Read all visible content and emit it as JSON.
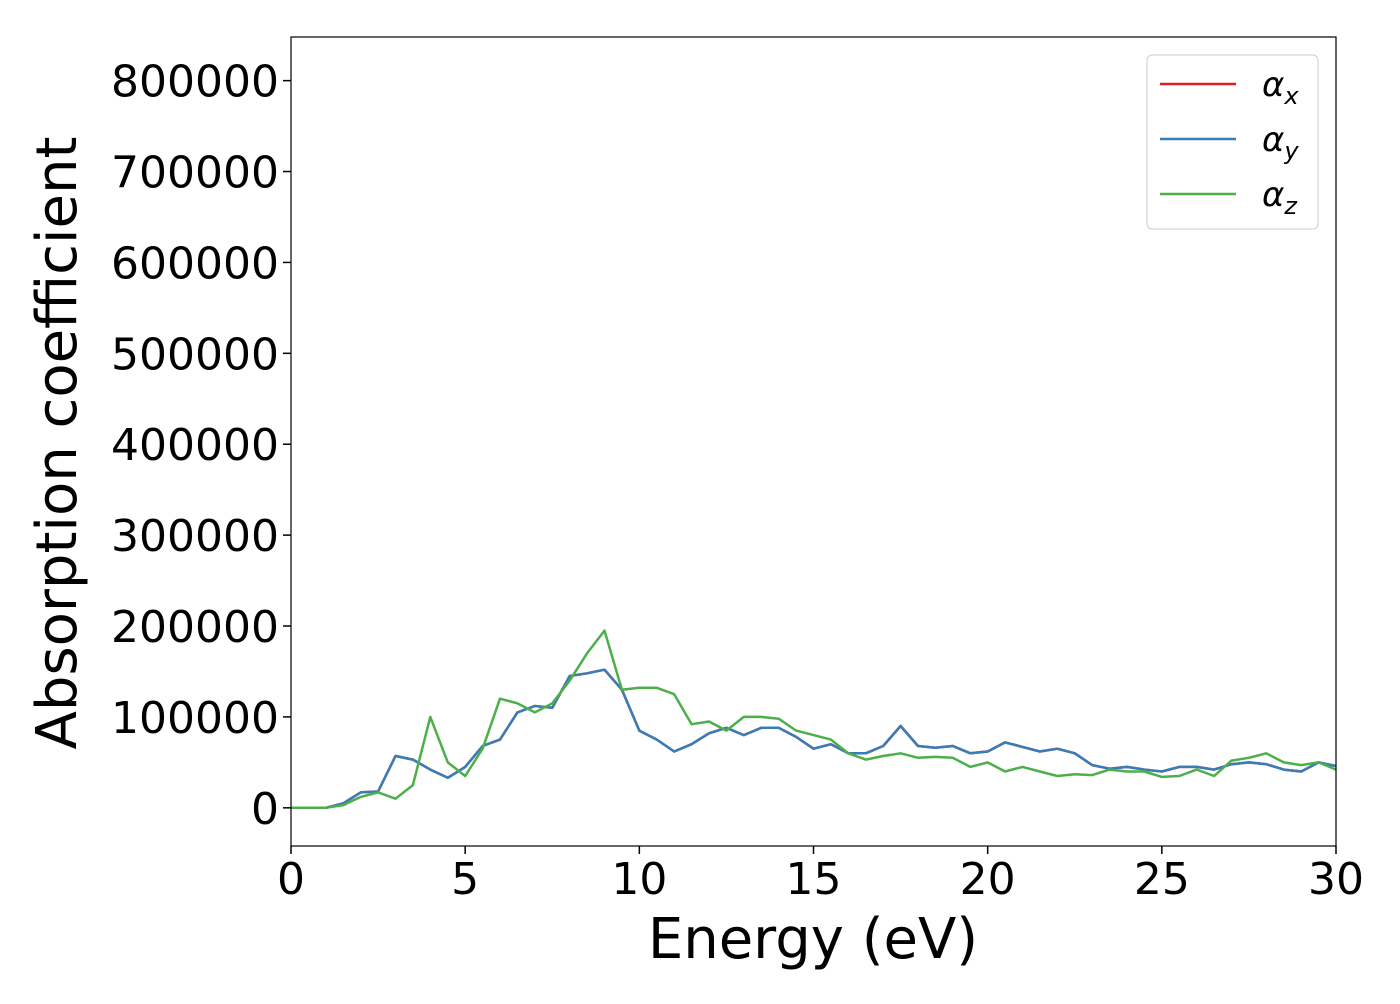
{
  "chart_data": {
    "type": "line",
    "xlabel": "Energy (eV)",
    "ylabel": "Absorption coefficient",
    "x": [
      0,
      0.5,
      1,
      1.5,
      2,
      2.5,
      3,
      3.5,
      4,
      4.5,
      5,
      5.5,
      6,
      6.5,
      7,
      7.5,
      8,
      8.5,
      9,
      9.5,
      10,
      10.5,
      11,
      11.5,
      12,
      12.5,
      13,
      13.5,
      14,
      14.5,
      15,
      15.5,
      16,
      16.5,
      17,
      17.5,
      18,
      18.5,
      19,
      19.5,
      20,
      20.5,
      21,
      21.5,
      22,
      22.5,
      23,
      23.5,
      24,
      24.5,
      25,
      25.5,
      26,
      26.5,
      27,
      27.5,
      28,
      28.5,
      29,
      29.5,
      30
    ],
    "series": [
      {
        "name": "αx",
        "color": "#e41a1c",
        "values": [
          0,
          0,
          0,
          5000,
          17000,
          18000,
          57000,
          53000,
          42000,
          33000,
          45000,
          68000,
          75000,
          105000,
          112000,
          110000,
          145000,
          148000,
          152000,
          130000,
          85000,
          75000,
          62000,
          70000,
          82000,
          88000,
          80000,
          88000,
          88000,
          78000,
          65000,
          70000,
          60000,
          60000,
          68000,
          90000,
          68000,
          66000,
          68000,
          60000,
          62000,
          72000,
          67000,
          62000,
          65000,
          60000,
          47000,
          43000,
          45000,
          42000,
          40000,
          45000,
          45000,
          42000,
          48000,
          50000,
          48000,
          42000,
          40000,
          50000,
          46000
        ]
      },
      {
        "name": "αy",
        "color": "#377eb8",
        "values": [
          0,
          0,
          0,
          5000,
          17000,
          18000,
          57000,
          53000,
          42000,
          33000,
          45000,
          68000,
          75000,
          105000,
          112000,
          110000,
          145000,
          148000,
          152000,
          130000,
          85000,
          75000,
          62000,
          70000,
          82000,
          88000,
          80000,
          88000,
          88000,
          78000,
          65000,
          70000,
          60000,
          60000,
          68000,
          90000,
          68000,
          66000,
          68000,
          60000,
          62000,
          72000,
          67000,
          62000,
          65000,
          60000,
          47000,
          43000,
          45000,
          42000,
          40000,
          45000,
          45000,
          42000,
          48000,
          50000,
          48000,
          42000,
          40000,
          50000,
          46000
        ]
      },
      {
        "name": "αz",
        "color": "#4daf4a",
        "values": [
          0,
          0,
          0,
          3000,
          12000,
          17000,
          10000,
          25000,
          100000,
          50000,
          35000,
          65000,
          120000,
          115000,
          105000,
          115000,
          140000,
          170000,
          195000,
          130000,
          132000,
          132000,
          125000,
          92000,
          95000,
          85000,
          100000,
          100000,
          98000,
          85000,
          80000,
          75000,
          60000,
          53000,
          57000,
          60000,
          55000,
          56000,
          55000,
          45000,
          50000,
          40000,
          45000,
          40000,
          35000,
          37000,
          36000,
          42000,
          40000,
          40000,
          34000,
          35000,
          42000,
          35000,
          52000,
          55000,
          60000,
          50000,
          47000,
          50000,
          42000
        ]
      }
    ],
    "xlim": [
      0,
      30
    ],
    "xticks": [
      0,
      5,
      10,
      15,
      20,
      25,
      30
    ],
    "ylim": [
      -42000,
      848000
    ],
    "yticks": [
      0,
      100000,
      200000,
      300000,
      400000,
      500000,
      600000,
      700000,
      800000
    ],
    "legend": "upper right"
  }
}
